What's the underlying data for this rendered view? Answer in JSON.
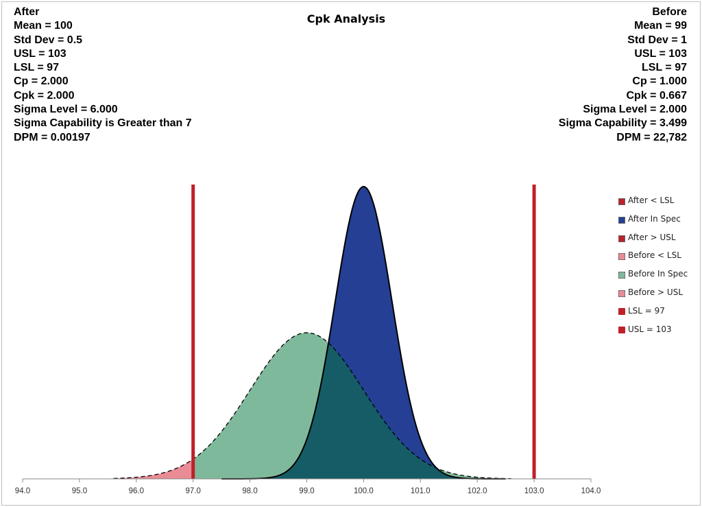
{
  "chart_data": {
    "type": "area",
    "title": "Cpk Analysis",
    "xlabel": "",
    "ylabel": "",
    "xlim": [
      94.0,
      104.0
    ],
    "xticks": [
      "94.0",
      "95.0",
      "96.0",
      "97.0",
      "98.0",
      "99.0",
      "100.0",
      "101.0",
      "102.0",
      "103.0",
      "104.0"
    ],
    "after": {
      "heading": "After",
      "lines": [
        "Mean = 100",
        "Std Dev = 0.5",
        "USL = 103",
        "LSL = 97",
        "Cp = 2.000",
        "Cpk = 2.000",
        "Sigma Level = 6.000",
        "Sigma Capability is Greater than 7",
        "DPM = 0.00197"
      ],
      "mean": 100,
      "std_dev": 0.5
    },
    "before": {
      "heading": "Before",
      "lines": [
        "Mean = 99",
        "Std Dev = 1",
        "USL = 103",
        "LSL = 97",
        "Cp = 1.000",
        "Cpk = 0.667",
        "Sigma Level = 2.000",
        "Sigma Capability = 3.499",
        "DPM = 22,782"
      ],
      "mean": 99,
      "std_dev": 1
    },
    "lsl": 97,
    "usl": 103,
    "series": [
      {
        "name": "After < LSL",
        "color": "#c0202a",
        "kind": "after-tail"
      },
      {
        "name": "After In Spec",
        "color": "#243f94",
        "kind": "after-in"
      },
      {
        "name": "After > USL",
        "color": "#c0202a",
        "kind": "after-tail"
      },
      {
        "name": "Before < LSL",
        "color": "#e98c95",
        "kind": "before-tail"
      },
      {
        "name": "Before In Spec",
        "color": "#7fb99b",
        "kind": "before-in"
      },
      {
        "name": "Before > USL",
        "color": "#e98c95",
        "kind": "before-tail"
      },
      {
        "name": "LSL = 97",
        "color": "#c0202a",
        "kind": "limit"
      },
      {
        "name": "USL = 103",
        "color": "#c0202a",
        "kind": "limit"
      }
    ],
    "overlap_color": "#155c66",
    "legend_position": "right"
  }
}
